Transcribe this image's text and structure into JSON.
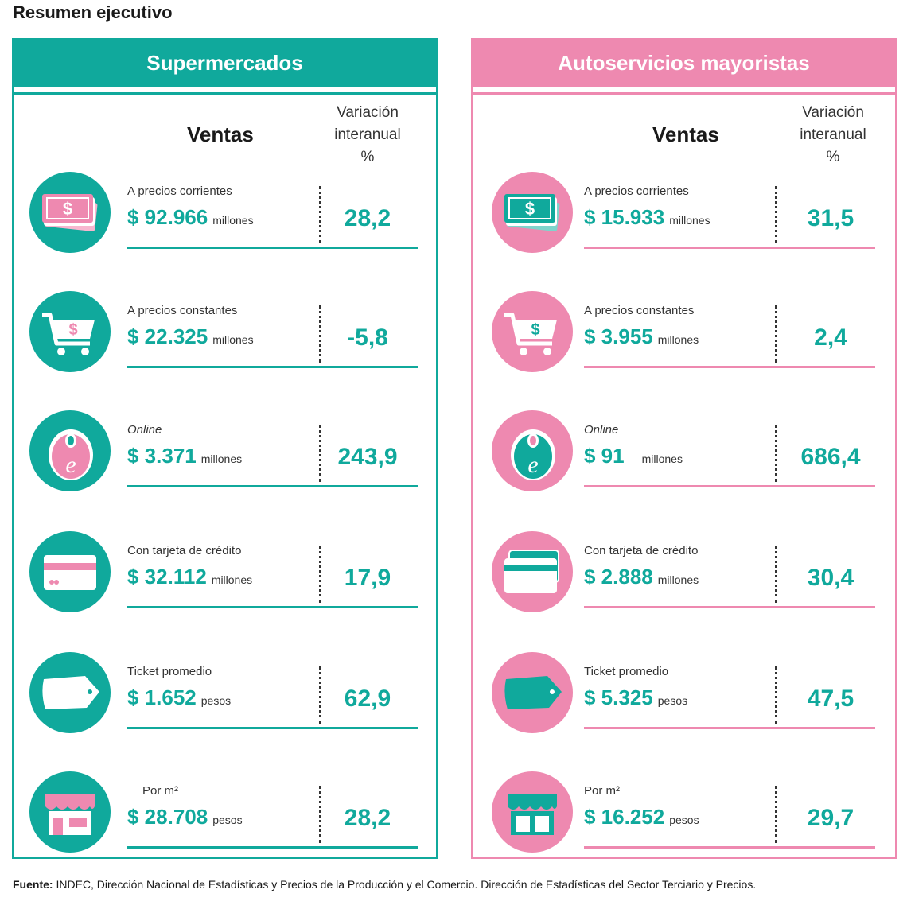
{
  "page_title": "Resumen ejecutivo",
  "colors": {
    "teal": "#10a99c",
    "pink": "#ee89b0"
  },
  "column_title": "Ventas",
  "variation_header": [
    "Variación",
    "interanual",
    "%"
  ],
  "panels": [
    {
      "title": "Supermercados",
      "rows": [
        {
          "icon": "money-bills-icon",
          "label": "A precios corrientes",
          "value": "$ 92.966",
          "unit": "millones",
          "variation": "28,2"
        },
        {
          "icon": "shopping-cart-icon",
          "label": "A precios constantes",
          "value": "$ 22.325",
          "unit": "millones",
          "variation": "-5,8"
        },
        {
          "icon": "online-tag-icon",
          "label": "Online",
          "value": "$ 3.371",
          "unit": "millones",
          "variation": "243,9"
        },
        {
          "icon": "credit-card-icon",
          "label": "Con tarjeta de crédito",
          "value": "$ 32.112",
          "unit": "millones",
          "variation": "17,9"
        },
        {
          "icon": "price-ticket-icon",
          "label": "Ticket promedio",
          "value": "$ 1.652",
          "unit": "pesos",
          "variation": "62,9"
        },
        {
          "icon": "store-icon",
          "label": "Por m²",
          "value": "$ 28.708",
          "unit": "pesos",
          "variation": "28,2"
        }
      ]
    },
    {
      "title": "Autoservicios mayoristas",
      "rows": [
        {
          "icon": "money-bills-icon",
          "label": "A precios corrientes",
          "value": "$ 15.933",
          "unit": "millones",
          "variation": "31,5"
        },
        {
          "icon": "shopping-cart-icon",
          "label": "A precios constantes",
          "value": "$ 3.955",
          "unit": "millones",
          "variation": "2,4"
        },
        {
          "icon": "online-tag-icon",
          "label": "Online",
          "value": "$ 91",
          "unit": "millones",
          "variation": "686,4"
        },
        {
          "icon": "credit-card-icon",
          "label": "Con tarjeta de crédito",
          "value": "$ 2.888",
          "unit": "millones",
          "variation": "30,4"
        },
        {
          "icon": "price-ticket-icon",
          "label": "Ticket promedio",
          "value": "$ 5.325",
          "unit": "pesos",
          "variation": "47,5"
        },
        {
          "icon": "store-icon",
          "label": "Por m²",
          "value": "$ 16.252",
          "unit": "pesos",
          "variation": "29,7"
        }
      ]
    }
  ],
  "footer": {
    "label": "Fuente:",
    "text": " INDEC, Dirección Nacional de Estadísticas y Precios de la Producción y el Comercio. Dirección de Estadísticas del Sector Terciario y Precios."
  }
}
